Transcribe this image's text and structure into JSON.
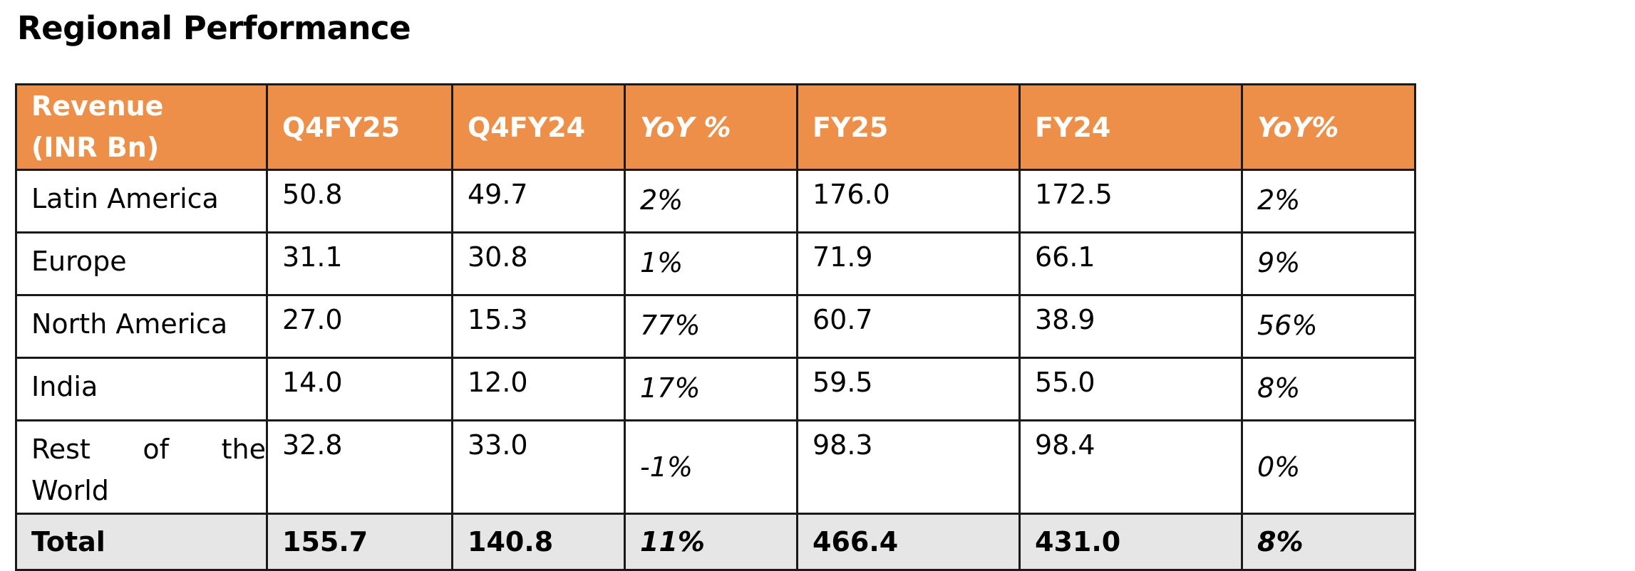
{
  "title": "Regional Performance",
  "table": {
    "header": {
      "label_line1": "Revenue",
      "label_line2": "(INR Bn)",
      "columns": [
        "Q4FY25",
        "Q4FY24",
        "YoY %",
        "FY25",
        "FY24",
        "YoY%"
      ]
    },
    "rows": [
      {
        "region": "Latin America",
        "q4fy25": "50.8",
        "q4fy24": "49.7",
        "yoy_q": "2%",
        "fy25": "176.0",
        "fy24": "172.5",
        "yoy_fy": "2%"
      },
      {
        "region": "Europe",
        "q4fy25": "31.1",
        "q4fy24": "30.8",
        "yoy_q": "1%",
        "fy25": "71.9",
        "fy24": "66.1",
        "yoy_fy": "9%"
      },
      {
        "region": "North America",
        "q4fy25": "27.0",
        "q4fy24": "15.3",
        "yoy_q": "77%",
        "fy25": "60.7",
        "fy24": "38.9",
        "yoy_fy": "56%"
      },
      {
        "region": "India",
        "q4fy25": "14.0",
        "q4fy24": "12.0",
        "yoy_q": "17%",
        "fy25": "59.5",
        "fy24": "55.0",
        "yoy_fy": "8%"
      },
      {
        "region_line1": [
          "Rest",
          "of",
          "the"
        ],
        "region_line2": "World",
        "q4fy25": "32.8",
        "q4fy24": "33.0",
        "yoy_q": "-1%",
        "fy25": "98.3",
        "fy24": "98.4",
        "yoy_fy": "0%"
      }
    ],
    "total": {
      "label": "Total",
      "q4fy25": "155.7",
      "q4fy24": "140.8",
      "yoy_q": "11%",
      "fy25": "466.4",
      "fy24": "431.0",
      "yoy_fy": "8%"
    }
  },
  "colors": {
    "header_bg": "#ED8F48",
    "header_text": "#FFFFFF",
    "total_bg": "#E6E6E6",
    "border": "#1A1A1A"
  }
}
